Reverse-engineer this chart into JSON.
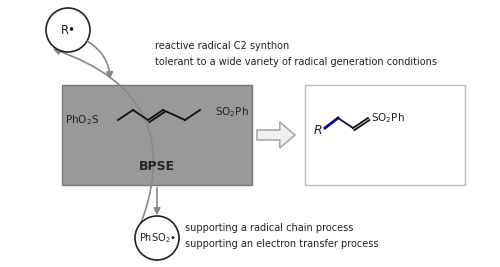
{
  "bg_color": "#ffffff",
  "bpse_box_color": "#999999",
  "bpse_box_edge": "#777777",
  "product_box_color": "#ffffff",
  "product_box_edge": "#aaaaaa",
  "arrow_color": "#888888",
  "text_color": "#222222",
  "top_text_line1": "reactive radical C2 synthon",
  "top_text_line2": "tolerant to a wide variety of radical generation conditions",
  "bottom_text_line1": "supporting a radical chain process",
  "bottom_text_line2": "supporting an electron transfer process",
  "figsize": [
    5.0,
    2.67
  ],
  "dpi": 100
}
